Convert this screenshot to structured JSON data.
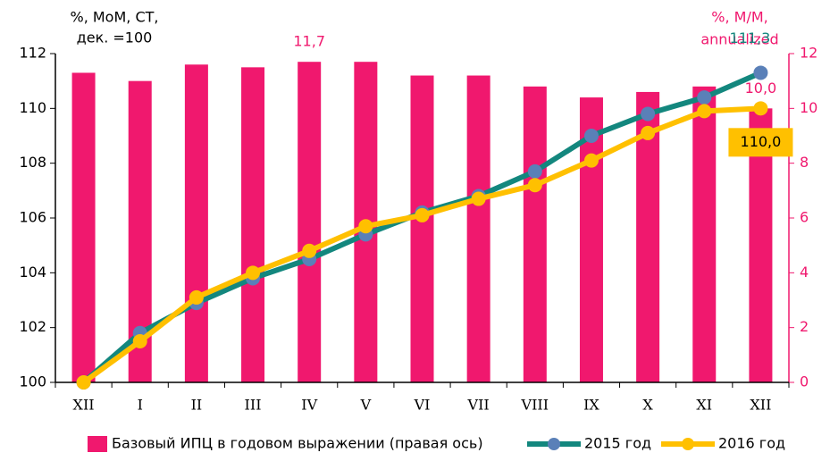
{
  "chart_data": {
    "type": "bar-line",
    "y_label": [
      "%, МоМ, СТ,",
      "дек. =100"
    ],
    "y2_label": [
      "%, М/М,",
      "annualized"
    ],
    "categories": [
      "XII",
      "I",
      "II",
      "III",
      "IV",
      "V",
      "VI",
      "VII",
      "VIII",
      "IX",
      "X",
      "XI",
      "XII"
    ],
    "series": [
      {
        "name": "Базовый ИПЦ в годовом выражении (правая ось)",
        "type": "bar",
        "axis": "y2",
        "color": "#f0186e",
        "values": [
          11.3,
          11.0,
          11.6,
          11.5,
          11.7,
          11.7,
          11.2,
          11.2,
          10.8,
          10.4,
          10.6,
          10.8,
          10.0
        ],
        "value_labels": [
          null,
          null,
          null,
          null,
          "11,7",
          null,
          null,
          null,
          null,
          null,
          null,
          null,
          "10,0"
        ]
      },
      {
        "name": "2015 год",
        "type": "line",
        "color": "#13877e",
        "marker_color": "#5a80b8",
        "values": [
          100,
          101.8,
          102.9,
          103.8,
          104.5,
          105.4,
          106.2,
          106.8,
          107.7,
          109.0,
          109.8,
          110.4,
          111.3
        ],
        "value_labels": [
          null,
          null,
          null,
          null,
          null,
          null,
          null,
          null,
          null,
          null,
          null,
          null,
          "111,3"
        ]
      },
      {
        "name": "2016 год",
        "type": "line",
        "color": "#ffc000",
        "marker_color": "#ffc000",
        "values": [
          100,
          101.5,
          103.1,
          104.0,
          104.8,
          105.7,
          106.1,
          106.7,
          107.2,
          108.1,
          109.1,
          109.9,
          110.0
        ],
        "value_labels": [
          null,
          null,
          null,
          null,
          null,
          null,
          null,
          null,
          null,
          null,
          null,
          null,
          "110,0"
        ]
      }
    ],
    "ylim": [
      100,
      112
    ],
    "yticks": [
      100,
      102,
      104,
      106,
      108,
      110,
      112
    ],
    "y2lim": [
      0,
      12
    ],
    "y2ticks": [
      0,
      2,
      4,
      6,
      8,
      10,
      12
    ],
    "y2_color": "#f0186e",
    "legend": "bottom"
  }
}
